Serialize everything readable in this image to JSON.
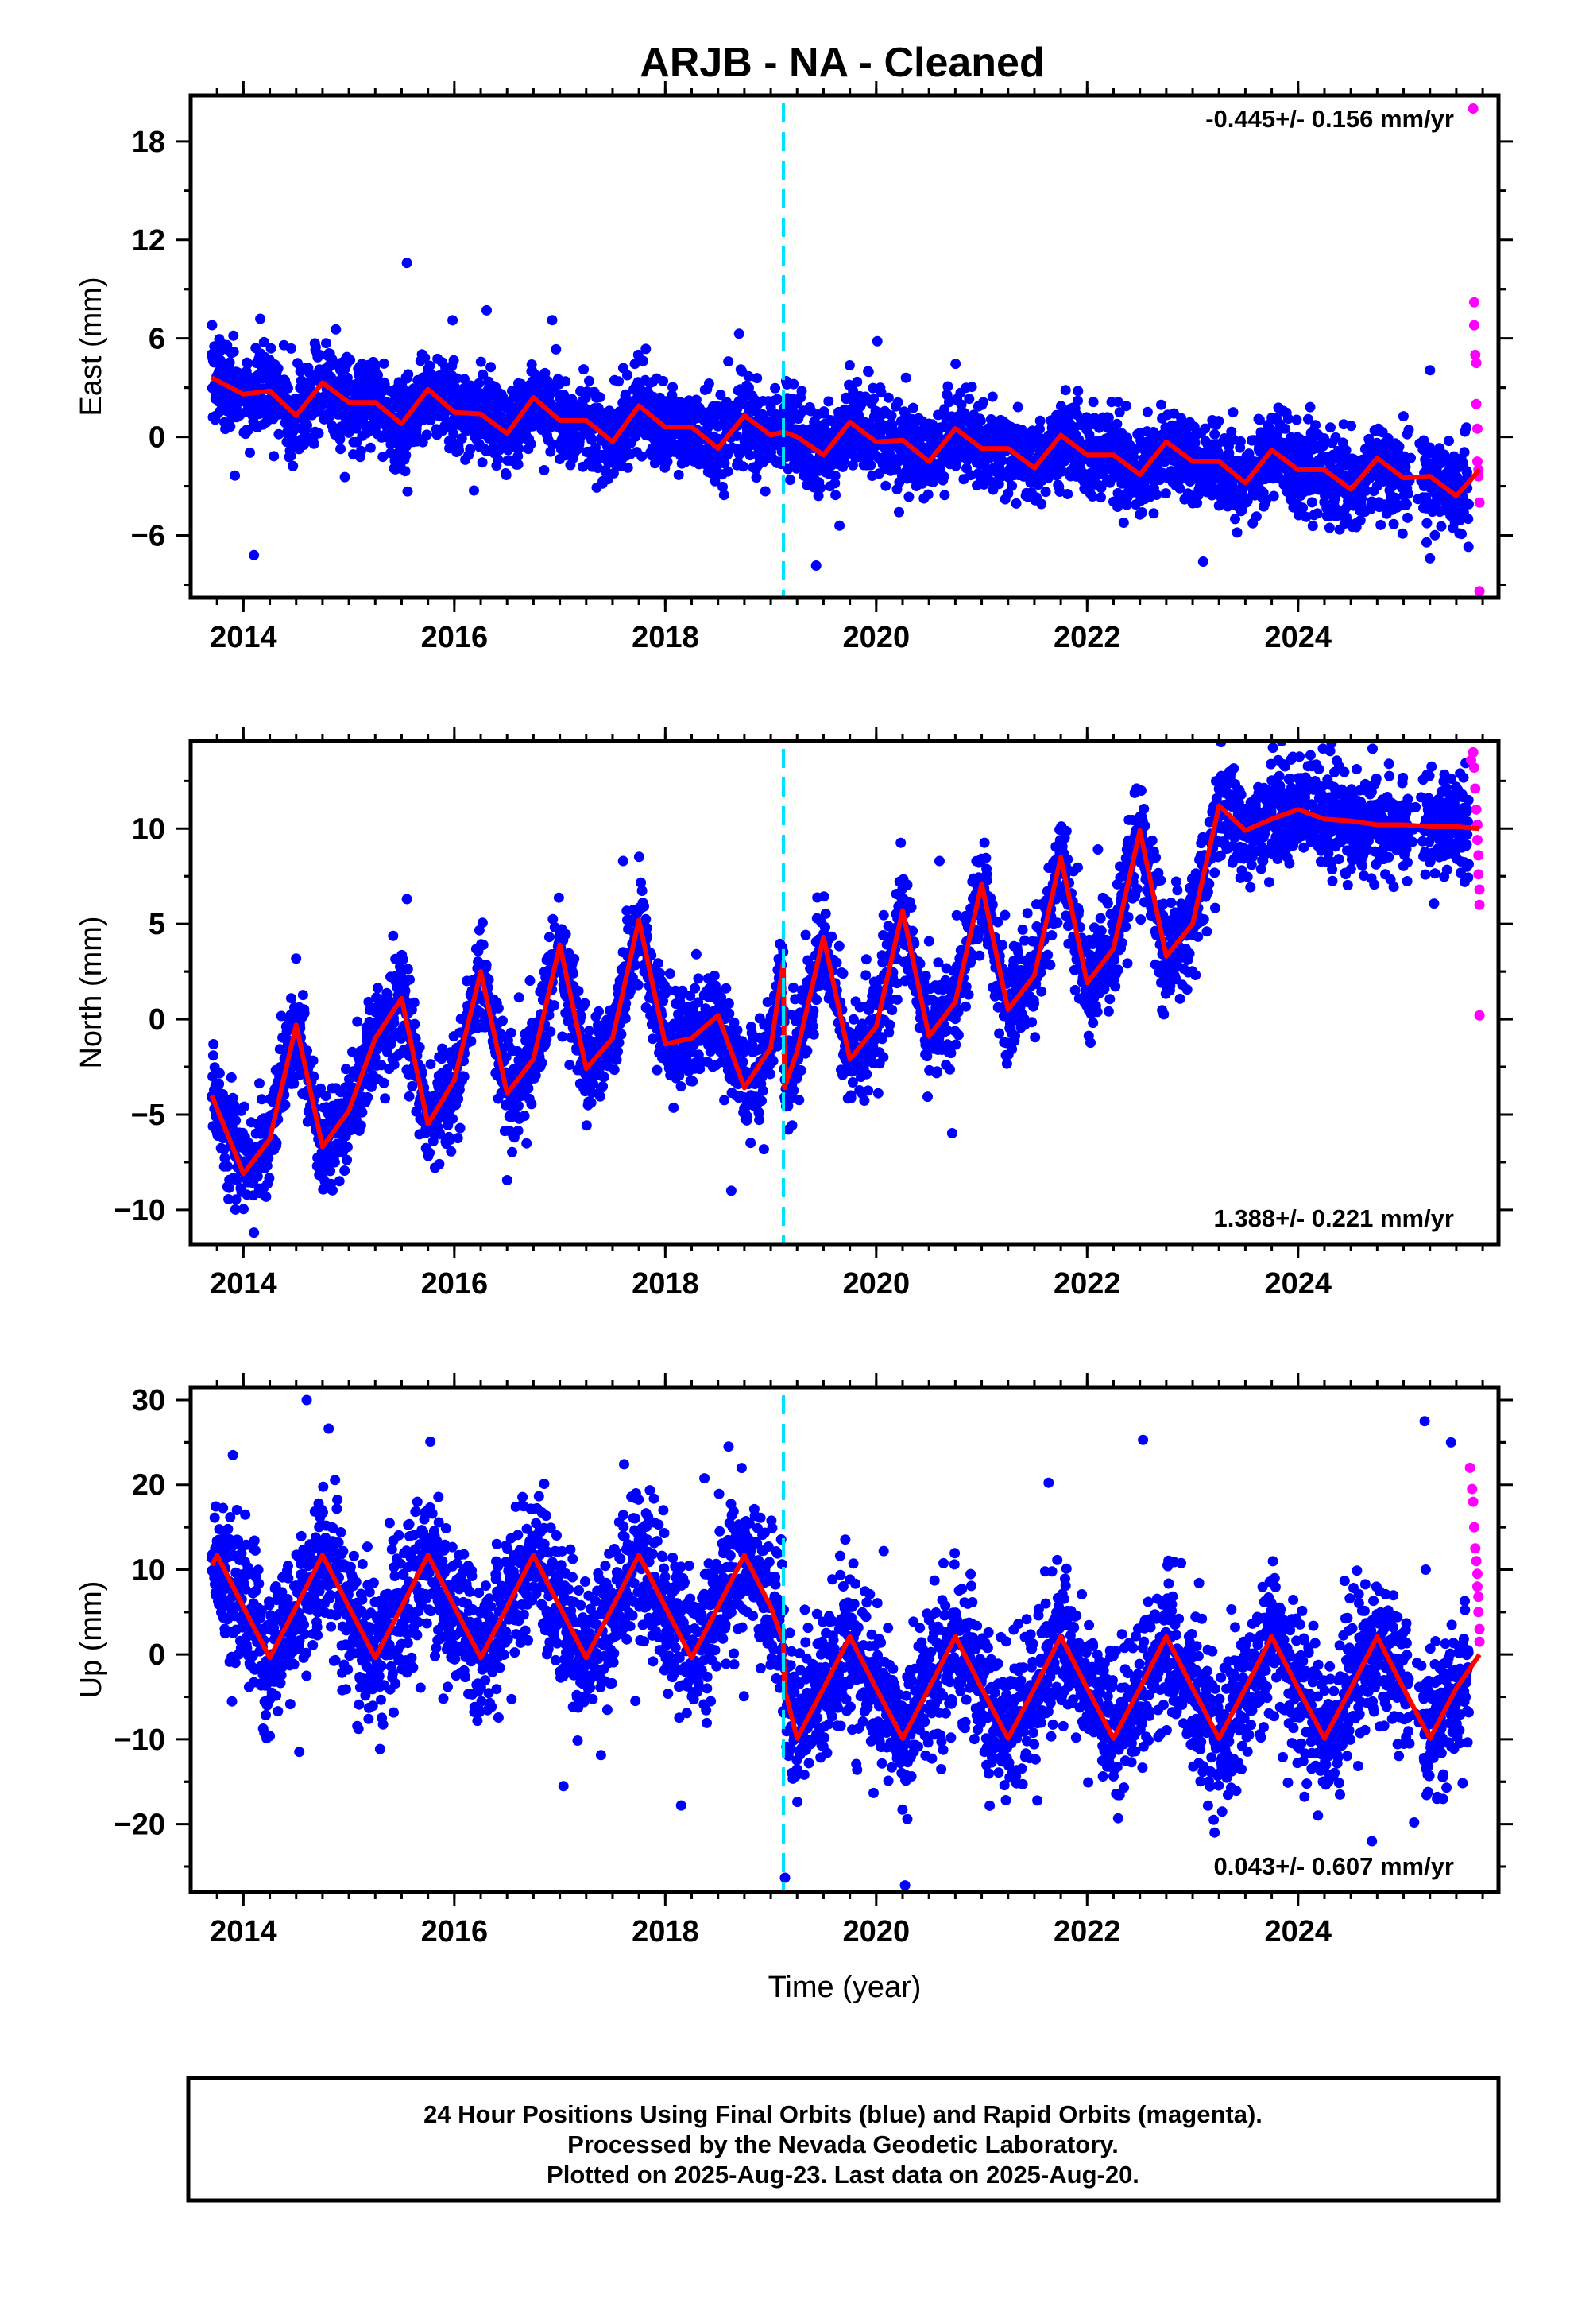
{
  "title": "ARJB  - NA - Cleaned",
  "colors": {
    "final": "#0000ff",
    "rapid": "#ff00ff",
    "model": "#ff0000",
    "event": "#00e0ff",
    "frame": "#000000"
  },
  "chart_data": [
    {
      "type": "scatter",
      "component": "East",
      "ylabel": "East (mm)",
      "xlabel": "",
      "xlim": [
        2013.5,
        2025.9
      ],
      "ylim": [
        -9.8,
        20.8
      ],
      "xticks": [
        2014,
        2016,
        2018,
        2020,
        2022,
        2024
      ],
      "xtick_labels": [
        "2014",
        "2016",
        "2018",
        "2020",
        "2022",
        "2024"
      ],
      "yticks": [
        -6,
        0,
        6,
        12,
        18
      ],
      "ytick_labels": [
        "−6",
        "0",
        "6",
        "12",
        "18"
      ],
      "rate_text": "-0.445+/- 0.156 mm/yr",
      "rate_position": "top-right",
      "event_epoch": 2019.12,
      "series": [
        {
          "name": "Final Orbits (blue)",
          "sampling": "daily",
          "model": {
            "intercept_at_2019_12": 0.1,
            "rate_mm_per_yr": -0.445,
            "annual_amplitude": 0.9,
            "annual_phase_peak_month": 8,
            "scatter_sd": 1.3
          },
          "outliers": [
            [
              2015.55,
              10.6
            ],
            [
              2014.1,
              -7.2
            ],
            [
              2023.1,
              -7.6
            ],
            [
              2025.25,
              -7.4
            ]
          ]
        },
        {
          "name": "Rapid Orbits (magenta)",
          "x": [
            2025.66,
            2025.67,
            2025.67,
            2025.68,
            2025.69,
            2025.69,
            2025.7,
            2025.7,
            2025.71,
            2025.71,
            2025.72,
            2025.72
          ],
          "y": [
            20.0,
            8.2,
            6.8,
            5.0,
            4.5,
            2.0,
            0.5,
            -1.5,
            -2.0,
            -2.4,
            -4.0,
            -9.4
          ]
        },
        {
          "name": "Model",
          "type": "line",
          "x": [
            2013.7,
            2014.0,
            2014.25,
            2014.5,
            2014.75,
            2015.0,
            2015.25,
            2015.5,
            2015.75,
            2016.0,
            2016.25,
            2016.5,
            2016.75,
            2017.0,
            2017.25,
            2017.5,
            2017.75,
            2018.0,
            2018.25,
            2018.5,
            2018.75,
            2019.0,
            2019.12,
            2019.25,
            2019.5,
            2019.75,
            2020.0,
            2020.25,
            2020.5,
            2020.75,
            2021.0,
            2021.25,
            2021.5,
            2021.75,
            2022.0,
            2022.25,
            2022.5,
            2022.75,
            2023.0,
            2023.25,
            2023.5,
            2023.75,
            2024.0,
            2024.25,
            2024.5,
            2024.75,
            2025.0,
            2025.25,
            2025.5,
            2025.72
          ],
          "y": [
            3.6,
            2.6,
            2.8,
            1.3,
            3.3,
            2.1,
            2.1,
            0.8,
            2.9,
            1.5,
            1.4,
            0.2,
            2.4,
            1.0,
            1.0,
            -0.3,
            1.9,
            0.6,
            0.6,
            -0.7,
            1.3,
            0.1,
            0.3,
            0.0,
            -1.1,
            0.9,
            -0.3,
            -0.2,
            -1.5,
            0.5,
            -0.7,
            -0.7,
            -1.9,
            0.1,
            -1.1,
            -1.1,
            -2.3,
            -0.3,
            -1.5,
            -1.5,
            -2.8,
            -0.8,
            -2.0,
            -2.0,
            -3.2,
            -1.3,
            -2.5,
            -2.4,
            -3.6,
            -2.0
          ]
        }
      ]
    },
    {
      "type": "scatter",
      "component": "North",
      "ylabel": "North (mm)",
      "xlabel": "",
      "xlim": [
        2013.5,
        2025.9
      ],
      "ylim": [
        -11.8,
        14.6
      ],
      "xticks": [
        2014,
        2016,
        2018,
        2020,
        2022,
        2024
      ],
      "xtick_labels": [
        "2014",
        "2016",
        "2018",
        "2020",
        "2022",
        "2024"
      ],
      "yticks": [
        -10,
        -5,
        0,
        5,
        10
      ],
      "ytick_labels": [
        "−10",
        "−5",
        "0",
        "5",
        "10"
      ],
      "rate_text": "1.388+/- 0.221 mm/yr",
      "rate_position": "bottom-right",
      "event_epoch": 2019.12,
      "series": [
        {
          "name": "Final Orbits (blue)",
          "sampling": "daily",
          "model": {
            "intercept_at_2019_12": -3.6,
            "rate_mm_per_yr": 1.388,
            "annual_amplitude": 3.9,
            "annual_phase_peak_month": 7,
            "scatter_sd": 1.3
          },
          "outliers": [
            [
              2014.1,
              -11.2
            ],
            [
              2015.55,
              6.3
            ],
            [
              2017.6,
              8.3
            ],
            [
              2020.6,
              8.3
            ]
          ]
        },
        {
          "name": "Rapid Orbits (magenta)",
          "x": [
            2025.64,
            2025.66,
            2025.67,
            2025.68,
            2025.69,
            2025.7,
            2025.7,
            2025.71,
            2025.71,
            2025.72,
            2025.72,
            2025.72
          ],
          "y": [
            13.6,
            14.0,
            13.2,
            12.1,
            11.0,
            10.2,
            9.4,
            8.6,
            7.6,
            6.8,
            6.0,
            0.2
          ]
        },
        {
          "name": "Model",
          "type": "line",
          "x": [
            2013.7,
            2014.0,
            2014.25,
            2014.5,
            2014.75,
            2015.0,
            2015.25,
            2015.5,
            2015.75,
            2016.0,
            2016.25,
            2016.5,
            2016.75,
            2017.0,
            2017.25,
            2017.5,
            2017.75,
            2018.0,
            2018.25,
            2018.5,
            2018.75,
            2019.0,
            2019.12,
            2019.13,
            2019.25,
            2019.5,
            2019.75,
            2020.0,
            2020.25,
            2020.5,
            2020.75,
            2021.0,
            2021.25,
            2021.5,
            2021.75,
            2022.0,
            2022.25,
            2022.5,
            2022.75,
            2023.0,
            2023.25,
            2023.5,
            2023.75,
            2024.0,
            2024.25,
            2024.5,
            2024.75,
            2025.0,
            2025.25,
            2025.5,
            2025.72
          ],
          "y": [
            -4.0,
            -8.1,
            -6.3,
            -0.3,
            -6.7,
            -4.8,
            -1.0,
            1.1,
            -5.5,
            -3.2,
            2.5,
            -3.9,
            -2.1,
            3.9,
            -2.6,
            -1.0,
            5.2,
            -1.3,
            -1.0,
            0.2,
            -3.6,
            -1.5,
            3.0,
            -3.6,
            -1.7,
            4.3,
            -2.1,
            -0.4,
            5.7,
            -0.9,
            0.9,
            7.1,
            0.5,
            2.3,
            8.5,
            1.9,
            3.7,
            9.9,
            3.3,
            5.0,
            11.2,
            9.9,
            10.5,
            11.0,
            10.5,
            10.4,
            10.2,
            10.2,
            10.1,
            10.1,
            10.0
          ]
        }
      ]
    },
    {
      "type": "scatter",
      "component": "Up",
      "ylabel": "Up (mm)",
      "xlabel": "Time (year)",
      "xlim": [
        2013.5,
        2025.9
      ],
      "ylim": [
        -28.0,
        31.5
      ],
      "xticks": [
        2014,
        2016,
        2018,
        2020,
        2022,
        2024
      ],
      "xtick_labels": [
        "2014",
        "2016",
        "2018",
        "2020",
        "2022",
        "2024"
      ],
      "yticks": [
        -20,
        -10,
        0,
        10,
        20,
        30
      ],
      "ytick_labels": [
        "−20",
        "−10",
        "0",
        "10",
        "20",
        "30"
      ],
      "rate_text": "0.043+/- 0.607 mm/yr",
      "rate_position": "bottom-right",
      "event_epoch": 2019.12,
      "series": [
        {
          "name": "Final Orbits (blue)",
          "sampling": "daily",
          "model": {
            "pre_event_mean": 5.7,
            "post_event_mean": -4.0,
            "rate_mm_per_yr": 0.043,
            "annual_amplitude": 6.1,
            "annual_phase_peak_month": 9,
            "scatter_sd": 4.3
          },
          "outliers": [
            [
              2014.6,
              30.0
            ],
            [
              2013.9,
              23.5
            ],
            [
              2018.6,
              24.5
            ],
            [
              2018.15,
              -17.8
            ],
            [
              2025.2,
              27.5
            ],
            [
              2025.45,
              25.0
            ],
            [
              2024.7,
              -22.0
            ],
            [
              2025.1,
              -19.8
            ]
          ]
        },
        {
          "name": "Rapid Orbits (magenta)",
          "x": [
            2025.63,
            2025.65,
            2025.66,
            2025.67,
            2025.68,
            2025.69,
            2025.7,
            2025.7,
            2025.71,
            2025.71,
            2025.72,
            2025.72
          ],
          "y": [
            22.0,
            19.5,
            18.0,
            15.0,
            12.5,
            11.0,
            9.5,
            8.0,
            6.8,
            5.0,
            3.0,
            1.5
          ]
        },
        {
          "name": "Model",
          "type": "line",
          "x": [
            2013.7,
            2013.75,
            2014.0,
            2014.25,
            2014.5,
            2014.75,
            2015.0,
            2015.25,
            2015.5,
            2015.75,
            2016.0,
            2016.25,
            2016.5,
            2016.75,
            2017.0,
            2017.25,
            2017.5,
            2017.75,
            2018.0,
            2018.25,
            2018.5,
            2018.75,
            2019.0,
            2019.12,
            2019.13,
            2019.25,
            2019.5,
            2019.75,
            2020.0,
            2020.25,
            2020.5,
            2020.75,
            2021.0,
            2021.25,
            2021.5,
            2021.75,
            2022.0,
            2022.25,
            2022.5,
            2022.75,
            2023.0,
            2023.25,
            2023.5,
            2023.75,
            2024.0,
            2024.25,
            2024.5,
            2024.75,
            2025.0,
            2025.25,
            2025.5,
            2025.72
          ],
          "y": [
            10.5,
            11.7,
            5.6,
            -0.4,
            5.6,
            11.7,
            5.6,
            -0.4,
            5.6,
            11.7,
            5.6,
            -0.4,
            5.6,
            11.7,
            5.6,
            -0.4,
            5.6,
            11.7,
            5.6,
            -0.4,
            5.6,
            11.7,
            5.6,
            1.5,
            -4.0,
            -9.9,
            -4.0,
            2.1,
            -4.0,
            -9.9,
            -4.0,
            2.1,
            -4.0,
            -9.9,
            -4.0,
            2.1,
            -4.0,
            -9.9,
            -4.0,
            2.1,
            -4.0,
            -9.9,
            -4.0,
            2.1,
            -4.0,
            -9.9,
            -4.0,
            2.1,
            -4.0,
            -9.9,
            -4.0,
            0.0
          ]
        }
      ]
    }
  ],
  "footer": {
    "line1": "24 Hour Positions Using Final Orbits (blue) and Rapid Orbits (magenta).",
    "line2": "Processed by the Nevada Geodetic Laboratory.",
    "line3": "Plotted on 2025-Aug-23. Last data on 2025-Aug-20."
  }
}
